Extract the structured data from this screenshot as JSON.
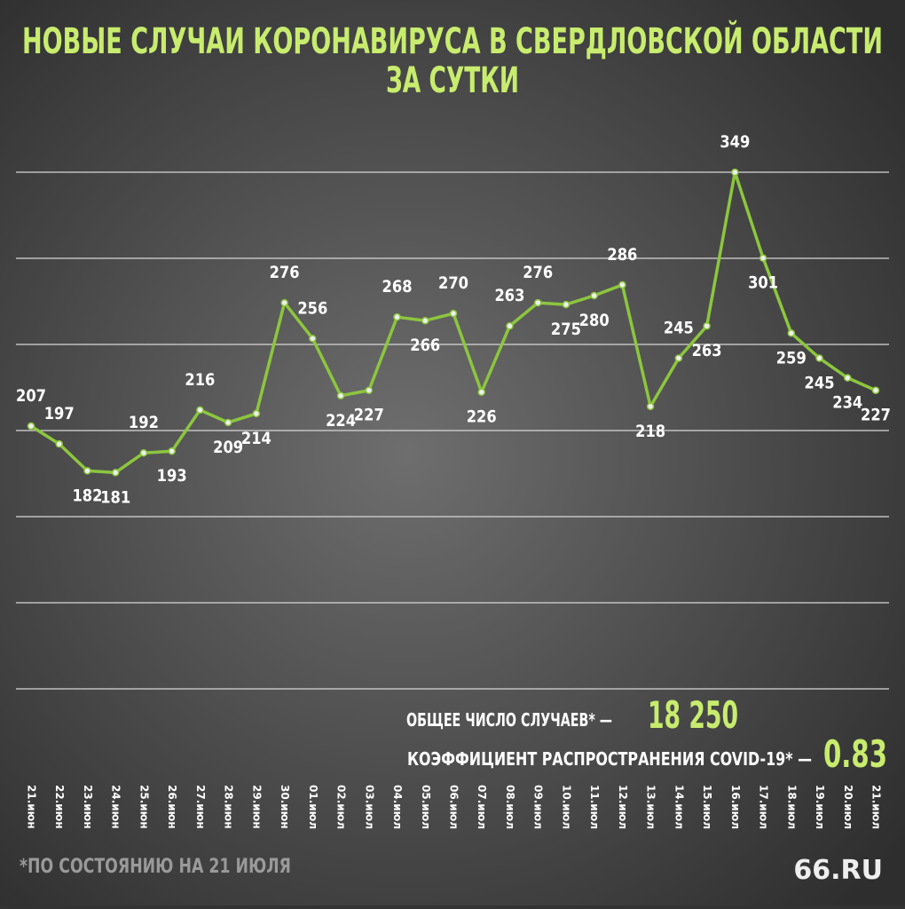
{
  "chart_data": {
    "type": "line",
    "title": [
      "НОВЫЕ СЛУЧАИ КОРОНАВИРУСА В СВЕРДЛОВСКОЙ ОБЛАСТИ",
      "ЗА СУТКИ"
    ],
    "categories": [
      "21.июн",
      "22.июн",
      "23.июн",
      "24.июн",
      "25.июн",
      "26.июн",
      "27.июн",
      "28.июн",
      "29.июн",
      "30.июн",
      "01.июл",
      "02.июл",
      "03.июл",
      "04.июл",
      "05.июл",
      "06.июл",
      "07.июл",
      "08.июл",
      "09.июл",
      "10.июл",
      "11.июл",
      "12.июл",
      "13.июл",
      "14.июл",
      "15.июл",
      "16.июл",
      "17.июл",
      "18.июл",
      "19.июл",
      "20.июл",
      "21.июл"
    ],
    "values": [
      207,
      197,
      182,
      181,
      192,
      193,
      216,
      209,
      214,
      276,
      256,
      224,
      227,
      268,
      266,
      270,
      226,
      263,
      276,
      275,
      280,
      286,
      218,
      245,
      263,
      349,
      301,
      259,
      245,
      234,
      227
    ],
    "color": "#8cc63e",
    "ylim": [
      60,
      355
    ],
    "total_label": "ОБЩЕЕ ЧИСЛО СЛУЧАЕВ* —",
    "total_value": "18 250",
    "rate_label": "КОЭФФИЦИЕНТ РАСПРОСТРАНЕНИЯ COVID-19* —",
    "rate_value": "0.83",
    "footnote": "*ПО СОСТОЯНИЮ НА 21 ИЮЛЯ",
    "logo": "66.RU"
  }
}
